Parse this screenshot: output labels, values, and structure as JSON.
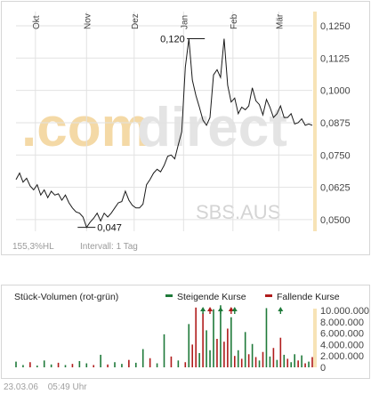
{
  "colors": {
    "line": "#1a1a1a",
    "grid": "#e2e2e2",
    "right_axis_bar": "#f7e3b6",
    "watermark_orange": "#f4d9a6",
    "watermark_gray": "#e4e4e4",
    "rising": "#1f7a3a",
    "falling": "#b01c1c",
    "muted_text": "#9a9a9a"
  },
  "price_panel": {
    "watermark": {
      "prefix": ".com",
      "suffix": "direct"
    },
    "sub_watermark": "SBS.AUS",
    "footer_left": "155,3%HL",
    "footer_right": "Intervall: 1 Tag"
  },
  "volume_panel": {
    "title": "Stück-Volumen (rot-grün)",
    "legend_rising": "Steigende Kurse",
    "legend_falling": "Fallende Kurse"
  },
  "footer": {
    "date": "23.03.06",
    "time": "05:49 Uhr"
  },
  "chart_data": [
    {
      "type": "line",
      "x": [
        0,
        2,
        4,
        6,
        8,
        10,
        12,
        14,
        16,
        18,
        20,
        22,
        24,
        26,
        28,
        30,
        32,
        34,
        36,
        38,
        40,
        42,
        44,
        46,
        48,
        50,
        52,
        54,
        56,
        58,
        60,
        62,
        64,
        66,
        68,
        70,
        72,
        74,
        76,
        78,
        80,
        82,
        84,
        86,
        88,
        90,
        92,
        94,
        96,
        98,
        100,
        102,
        104,
        106,
        108,
        110,
        112,
        114,
        116,
        118,
        120,
        122,
        124,
        126,
        128,
        130,
        132,
        134,
        136,
        138,
        140,
        142,
        144,
        146,
        148,
        150,
        152,
        154,
        156,
        158,
        160,
        162,
        164,
        166,
        168
      ],
      "values": [
        0.0655,
        0.068,
        0.0645,
        0.066,
        0.063,
        0.0615,
        0.0635,
        0.0595,
        0.0615,
        0.0585,
        0.061,
        0.0595,
        0.06,
        0.0575,
        0.0595,
        0.0565,
        0.0545,
        0.053,
        0.0525,
        0.051,
        0.047,
        0.049,
        0.0505,
        0.0525,
        0.0495,
        0.0525,
        0.051,
        0.0525,
        0.0545,
        0.0565,
        0.057,
        0.061,
        0.0575,
        0.0555,
        0.0545,
        0.0545,
        0.056,
        0.0635,
        0.0655,
        0.068,
        0.0695,
        0.0685,
        0.071,
        0.0745,
        0.075,
        0.0735,
        0.079,
        0.084,
        0.109,
        0.12,
        0.104,
        0.098,
        0.0935,
        0.0885,
        0.0865,
        0.0895,
        0.106,
        0.108,
        0.105,
        0.12,
        0.102,
        0.0955,
        0.097,
        0.091,
        0.0935,
        0.0925,
        0.094,
        0.101,
        0.096,
        0.0945,
        0.0905,
        0.0965,
        0.0935,
        0.0895,
        0.091,
        0.094,
        0.0895,
        0.0895,
        0.091,
        0.087,
        0.0875,
        0.089,
        0.0865,
        0.087,
        0.0865
      ],
      "x_labels": [
        {
          "label": "Okt",
          "at": 11
        },
        {
          "label": "Nov",
          "at": 40
        },
        {
          "label": "Dez",
          "at": 67
        },
        {
          "label": "Jan",
          "at": 95
        },
        {
          "label": "Feb",
          "at": 123
        },
        {
          "label": "Mär",
          "at": 149
        }
      ],
      "y_ticks": [
        0.05,
        0.0625,
        0.075,
        0.0875,
        0.1,
        0.1125,
        0.125
      ],
      "y_tick_labels": [
        "0,0500",
        "0,0625",
        "0,0750",
        "0,0875",
        "0,1000",
        "0,1125",
        "0,1250"
      ],
      "ylim": [
        0.0455,
        0.1305
      ],
      "annotations": [
        {
          "label": "0,120",
          "x": 102,
          "value": 0.12
        },
        {
          "label": "0,047",
          "x": 40,
          "value": 0.047
        }
      ],
      "grid": true
    },
    {
      "type": "bar",
      "x": [
        0,
        4,
        8,
        12,
        16,
        20,
        24,
        28,
        32,
        36,
        40,
        44,
        48,
        52,
        56,
        60,
        64,
        68,
        72,
        76,
        80,
        84,
        88,
        92,
        96,
        98,
        100,
        102,
        104,
        106,
        108,
        110,
        112,
        114,
        116,
        118,
        120,
        122,
        124,
        126,
        128,
        130,
        132,
        134,
        136,
        138,
        140,
        142,
        144,
        146,
        148,
        150,
        152,
        154,
        156,
        158,
        160,
        162,
        164,
        166,
        168
      ],
      "values": [
        1000000,
        400000,
        900000,
        300000,
        1200000,
        500000,
        800000,
        400000,
        600000,
        1100000,
        700000,
        400000,
        2200000,
        500000,
        900000,
        600000,
        1300000,
        800000,
        3200000,
        1600000,
        700000,
        5800000,
        1900000,
        1200000,
        900000,
        7600000,
        4000000,
        10500000,
        2500000,
        9600000,
        6500000,
        3000000,
        10200000,
        5000000,
        10900000,
        4500000,
        6800000,
        8800000,
        2000000,
        3000000,
        1500000,
        6200000,
        2300000,
        4100000,
        1800000,
        1200000,
        2700000,
        10400000,
        1900000,
        3400000,
        1300000,
        5200000,
        2200000,
        1500000,
        900000,
        2300000,
        1200000,
        2100000,
        700000,
        1000000,
        1800000
      ],
      "direction": [
        "up",
        "up",
        "down",
        "up",
        "up",
        "up",
        "down",
        "up",
        "down",
        "up",
        "up",
        "down",
        "up",
        "down",
        "up",
        "up",
        "down",
        "up",
        "up",
        "down",
        "up",
        "up",
        "down",
        "up",
        "down",
        "up",
        "down",
        "down",
        "up",
        "down",
        "up",
        "up",
        "up",
        "down",
        "up",
        "down",
        "down",
        "up",
        "down",
        "up",
        "down",
        "up",
        "down",
        "up",
        "down",
        "up",
        "down",
        "up",
        "up",
        "down",
        "up",
        "down",
        "up",
        "down",
        "up",
        "up",
        "down",
        "up",
        "down",
        "up",
        "down"
      ],
      "ylim": [
        0,
        10000000
      ],
      "y_ticks": [
        0,
        2000000,
        4000000,
        6000000,
        8000000,
        10000000
      ],
      "y_tick_labels": [
        "0",
        "2.000.000",
        "4.000.000",
        "6.000.000",
        "8.000.000",
        "10.000.000"
      ],
      "arrows": [
        {
          "x": 106,
          "direction": "up"
        },
        {
          "x": 110,
          "direction": "down"
        },
        {
          "x": 116,
          "direction": "up"
        },
        {
          "x": 122,
          "direction": "down"
        },
        {
          "x": 124,
          "direction": "up"
        },
        {
          "x": 150,
          "direction": "up"
        }
      ],
      "legend": [
        "Steigende Kurse",
        "Fallende Kurse"
      ]
    }
  ]
}
